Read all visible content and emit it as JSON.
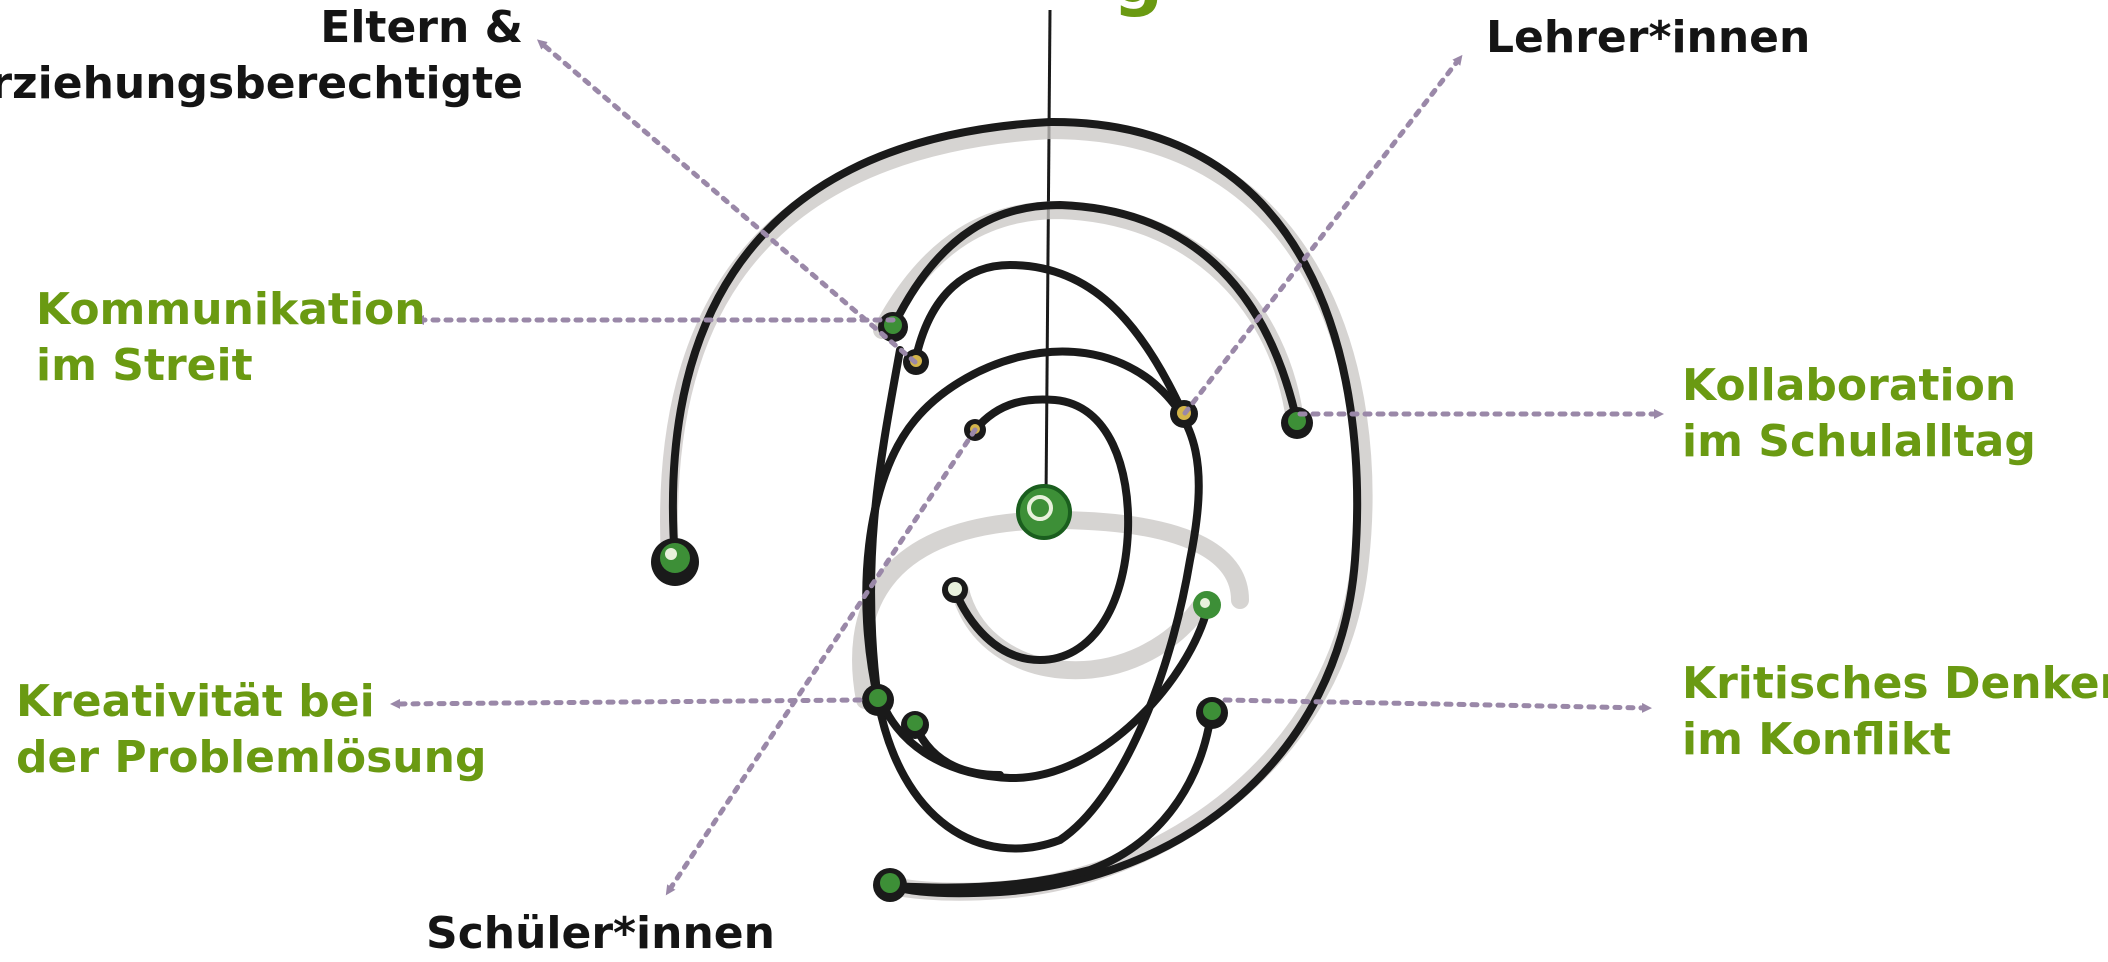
{
  "title_fragment": "g",
  "stakeholders": {
    "parents": {
      "line1": "Eltern &",
      "line2": "Erziehungsberechtigte"
    },
    "teachers": "Lehrer*innen",
    "students": "Schüler*innen"
  },
  "competencies": {
    "communication": {
      "line1": "Kommunikation",
      "line2": "im Streit"
    },
    "collaboration": {
      "line1": "Kollaboration",
      "line2": "im Schulalltag"
    },
    "creativity": {
      "line1": "Kreativität bei",
      "line2": "der Problemlösung"
    },
    "critical_thinking": {
      "line1": "Kritisches Denken",
      "line2": "im Konflikt"
    }
  },
  "colors": {
    "text_black": "#141414",
    "accent_green": "#6a9a12",
    "arrow_gray": "#9a88a8",
    "spiral_black": "#1a1a1a",
    "shadow_gray": "#c9c6c4",
    "node_green": "#3d8f37"
  },
  "icons": [
    "hanging-string",
    "spiral-mobile",
    "node-bead",
    "dotted-arrow"
  ]
}
